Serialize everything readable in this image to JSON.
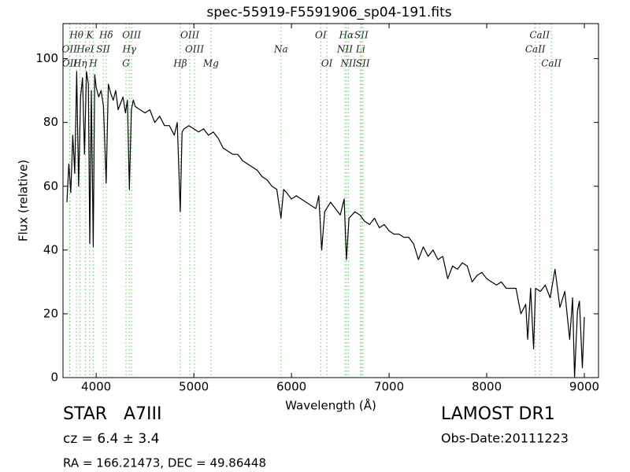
{
  "chart_data": {
    "type": "line",
    "title": "spec-55919-F5591906_sp04-191.fits",
    "xlabel": "Wavelength (Å)",
    "ylabel": "Flux (relative)",
    "xlim": [
      3660,
      9145
    ],
    "ylim": [
      0,
      111
    ],
    "xticks": [
      4000,
      5000,
      6000,
      7000,
      8000,
      9000
    ],
    "yticks": [
      0,
      20,
      40,
      60,
      80,
      100
    ],
    "x": [
      3700,
      3720,
      3740,
      3760,
      3780,
      3800,
      3820,
      3840,
      3860,
      3880,
      3900,
      3920,
      3934,
      3950,
      3970,
      3985,
      4000,
      4025,
      4050,
      4075,
      4102,
      4125,
      4150,
      4175,
      4200,
      4225,
      4250,
      4275,
      4300,
      4320,
      4340,
      4360,
      4380,
      4400,
      4450,
      4500,
      4550,
      4600,
      4650,
      4700,
      4750,
      4800,
      4830,
      4861,
      4880,
      4900,
      4950,
      5000,
      5050,
      5100,
      5150,
      5200,
      5250,
      5300,
      5350,
      5400,
      5450,
      5500,
      5550,
      5600,
      5650,
      5700,
      5750,
      5800,
      5850,
      5893,
      5920,
      5950,
      6000,
      6050,
      6100,
      6150,
      6200,
      6250,
      6280,
      6310,
      6340,
      6400,
      6450,
      6500,
      6540,
      6563,
      6590,
      6650,
      6700,
      6750,
      6800,
      6850,
      6900,
      6950,
      7000,
      7050,
      7100,
      7150,
      7200,
      7250,
      7300,
      7350,
      7400,
      7450,
      7500,
      7550,
      7600,
      7650,
      7700,
      7750,
      7800,
      7850,
      7900,
      7950,
      8000,
      8050,
      8100,
      8150,
      8200,
      8250,
      8300,
      8350,
      8400,
      8420,
      8450,
      8480,
      8500,
      8550,
      8600,
      8650,
      8700,
      8750,
      8800,
      8850,
      8880,
      8900,
      8930,
      8950,
      8980,
      9000
    ],
    "series": [
      {
        "color": "#000000",
        "values": [
          55,
          67,
          58,
          76,
          64,
          96,
          60,
          88,
          94,
          70,
          96,
          92,
          42,
          90,
          41,
          95,
          91,
          88,
          90,
          85,
          61,
          92,
          89,
          87,
          90,
          84,
          86,
          88,
          83,
          87,
          59,
          84,
          87,
          85,
          84,
          83,
          84,
          80,
          82,
          79,
          79,
          76,
          80,
          52,
          77,
          78,
          79,
          78,
          77,
          78,
          76,
          77,
          75,
          72,
          71,
          70,
          70,
          68,
          67,
          66,
          65,
          63,
          62,
          60,
          59,
          50,
          59,
          58,
          56,
          57,
          56,
          55,
          54,
          53,
          57,
          40,
          52,
          55,
          53,
          51,
          56,
          37,
          50,
          52,
          51,
          49,
          48,
          50,
          47,
          48,
          46,
          45,
          45,
          44,
          44,
          42,
          37,
          41,
          38,
          40,
          37,
          38,
          31,
          35,
          34,
          36,
          35,
          30,
          32,
          33,
          31,
          30,
          29,
          30,
          28,
          28,
          28,
          20,
          23,
          12,
          28,
          9,
          28,
          27,
          29,
          25,
          34,
          22,
          27,
          12,
          25,
          0,
          21,
          24,
          3,
          19
        ]
      }
    ],
    "line_marker_groups": [
      [
        {
          "label": "Hθ",
          "wavelength": 3798
        },
        {
          "label": "K",
          "wavelength": 3934
        },
        {
          "label": "Hδ",
          "wavelength": 4102
        },
        {
          "label": "OIII",
          "wavelength": 4363
        },
        {
          "label": "OIII",
          "wavelength": 4959
        },
        {
          "label": "OI",
          "wavelength": 6300
        },
        {
          "label": "Hα",
          "wavelength": 6563
        },
        {
          "label": "SII",
          "wavelength": 6716
        },
        {
          "label": "CaII",
          "wavelength": 8542
        }
      ],
      [
        {
          "label": "OII",
          "wavelength": 3726
        },
        {
          "label": "HeI",
          "wavelength": 3889
        },
        {
          "label": "SII",
          "wavelength": 4072
        },
        {
          "label": "Hγ",
          "wavelength": 4340
        },
        {
          "label": "OIII",
          "wavelength": 5007
        },
        {
          "label": "Na",
          "wavelength": 5893
        },
        {
          "label": "NII",
          "wavelength": 6548
        },
        {
          "label": "Li",
          "wavelength": 6707
        },
        {
          "label": "CaII",
          "wavelength": 8498
        }
      ],
      [
        {
          "label": "OII",
          "wavelength": 3729
        },
        {
          "label": "Hη",
          "wavelength": 3835
        },
        {
          "label": "H",
          "wavelength": 3970
        },
        {
          "label": "G",
          "wavelength": 4305
        },
        {
          "label": "Hβ",
          "wavelength": 4861
        },
        {
          "label": "Mg",
          "wavelength": 5175
        },
        {
          "label": "OI",
          "wavelength": 6363
        },
        {
          "label": "NII",
          "wavelength": 6583
        },
        {
          "label": "SII",
          "wavelength": 6731
        },
        {
          "label": "CaII",
          "wavelength": 8662
        }
      ]
    ],
    "line_marker_color": "#66cc66",
    "footer": {
      "object": "STAR   A7III",
      "redshift": "cz = 6.4 ± 3.4",
      "coords": "RA = 166.21473, DEC = 49.86448",
      "survey": "LAMOST DR1",
      "date": "Obs-Date:20111223"
    }
  }
}
